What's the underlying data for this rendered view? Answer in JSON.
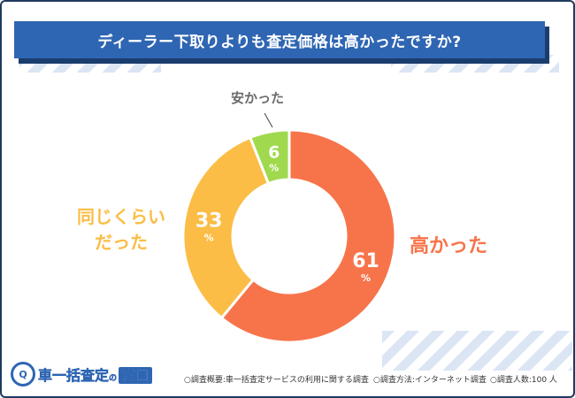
{
  "header": {
    "title": "ディーラー下取りよりも査定価格は高かったですか?"
  },
  "chart_data": {
    "type": "pie",
    "title": "ディーラー下取りよりも査定価格は高かったですか?",
    "slices": [
      {
        "label": "高かった",
        "value": 61,
        "unit": "%",
        "color": "#f7744a"
      },
      {
        "label": "同じくらいだった",
        "value": 33,
        "unit": "%",
        "color": "#fbbd45"
      },
      {
        "label": "安かった",
        "value": 6,
        "unit": "%",
        "color": "#a0d94d"
      }
    ]
  },
  "labels": {
    "high": "高かった",
    "same_line1": "同じくらい",
    "same_line2": "だった",
    "low": "安かった"
  },
  "footer": {
    "overview": "○調査概要:車一括査定サービスの利用に関する調査",
    "method": "○調査方法:インターネット調査",
    "count": "○調査人数:100 人"
  },
  "logo": {
    "text_main": "車一括査定",
    "text_no": "の",
    "text_box": "窓口"
  },
  "colors": {
    "header_bg": "#2f66b3",
    "high": "#f7744a",
    "same": "#fbbd45",
    "low": "#a0d94d",
    "value_text": "#ffffff",
    "low_label": "#6b6b6b"
  }
}
